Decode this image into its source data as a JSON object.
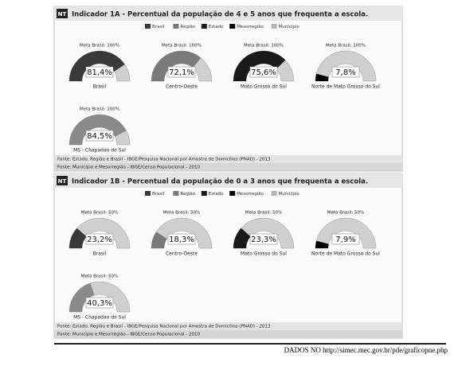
{
  "panels": [
    {
      "badge": "NT",
      "title": "Indicador 1A - Percentual da população de 4 e 5 anos que frequenta a escola.",
      "legend": [
        {
          "name": "Brasil",
          "color": "#3a3a3a"
        },
        {
          "name": "Região",
          "color": "#7a7a7a"
        },
        {
          "name": "Estado",
          "color": "#1a1a1a"
        },
        {
          "name": "Mesorregião",
          "color": "#000000"
        },
        {
          "name": "Município",
          "color": "#b5b5b5"
        }
      ],
      "gauges": [
        {
          "meta": "Meta Brasil: 100%",
          "value": 81.4,
          "value_label": "81,4%",
          "name": "Brasil",
          "color": "#3a3a3a"
        },
        {
          "meta": "Meta Brasil: 100%",
          "value": 72.1,
          "value_label": "72,1%",
          "name": "Centro-Oeste",
          "color": "#7a7a7a"
        },
        {
          "meta": "Meta Brasil: 100%",
          "value": 75.6,
          "value_label": "75,6%",
          "name": "Mato Grosso do Sul",
          "color": "#1a1a1a"
        },
        {
          "meta": "Meta Brasil: 100%",
          "value": 7.8,
          "value_label": "7,8%",
          "name": "Norte de Mato Grosso do Sul",
          "color": "#000000"
        },
        {
          "meta": "Meta Brasil: 100%",
          "value": 84.5,
          "value_label": "84,5%",
          "name": "MS - Chapadao do Sul",
          "color": "#8a8a8a"
        }
      ],
      "sources": [
        "Fonte: Estado, Região e Brasil - IBGE/Pesquisa Nacional por Amostra de Domicílios (PNAD) - 2013",
        "Fonte: Município e Mesorregião - IBGE/Censo Populacional - 2010"
      ]
    },
    {
      "badge": "NT",
      "title": "Indicador 1B - Percentual da população de 0 a 3 anos que frequenta a escola.",
      "legend": [
        {
          "name": "Brasil",
          "color": "#3a3a3a"
        },
        {
          "name": "Região",
          "color": "#7a7a7a"
        },
        {
          "name": "Estado",
          "color": "#1a1a1a"
        },
        {
          "name": "Mesorregião",
          "color": "#000000"
        },
        {
          "name": "Município",
          "color": "#b5b5b5"
        }
      ],
      "gauges": [
        {
          "meta": "Meta Brasil: 50%",
          "value": 23.2,
          "value_label": "23,2%",
          "name": "Brasil",
          "color": "#3a3a3a"
        },
        {
          "meta": "Meta Brasil: 50%",
          "value": 18.3,
          "value_label": "18,3%",
          "name": "Centro-Oeste",
          "color": "#7a7a7a"
        },
        {
          "meta": "Meta Brasil: 50%",
          "value": 23.3,
          "value_label": "23,3%",
          "name": "Mato Grosso do Sul",
          "color": "#1a1a1a"
        },
        {
          "meta": "Meta Brasil: 50%",
          "value": 7.9,
          "value_label": "7,9%",
          "name": "Norte de Mato Grosso do Sul",
          "color": "#000000"
        },
        {
          "meta": "Meta Brasil: 50%",
          "value": 40.3,
          "value_label": "40,3%",
          "name": "MS - Chapadao do Sul",
          "color": "#8a8a8a"
        }
      ],
      "sources": [
        "Fonte: Estado, Região e Brasil - IBGE/Pesquisa Nacional por Amostra de Domicílios (PNAD) - 2013",
        "Fonte: Município e Mesorregião - IBGE/Censo Populacional - 2010"
      ]
    }
  ],
  "footer": "DADOS NO http://simec.mec.gov.br/pde/graficopne.php"
}
